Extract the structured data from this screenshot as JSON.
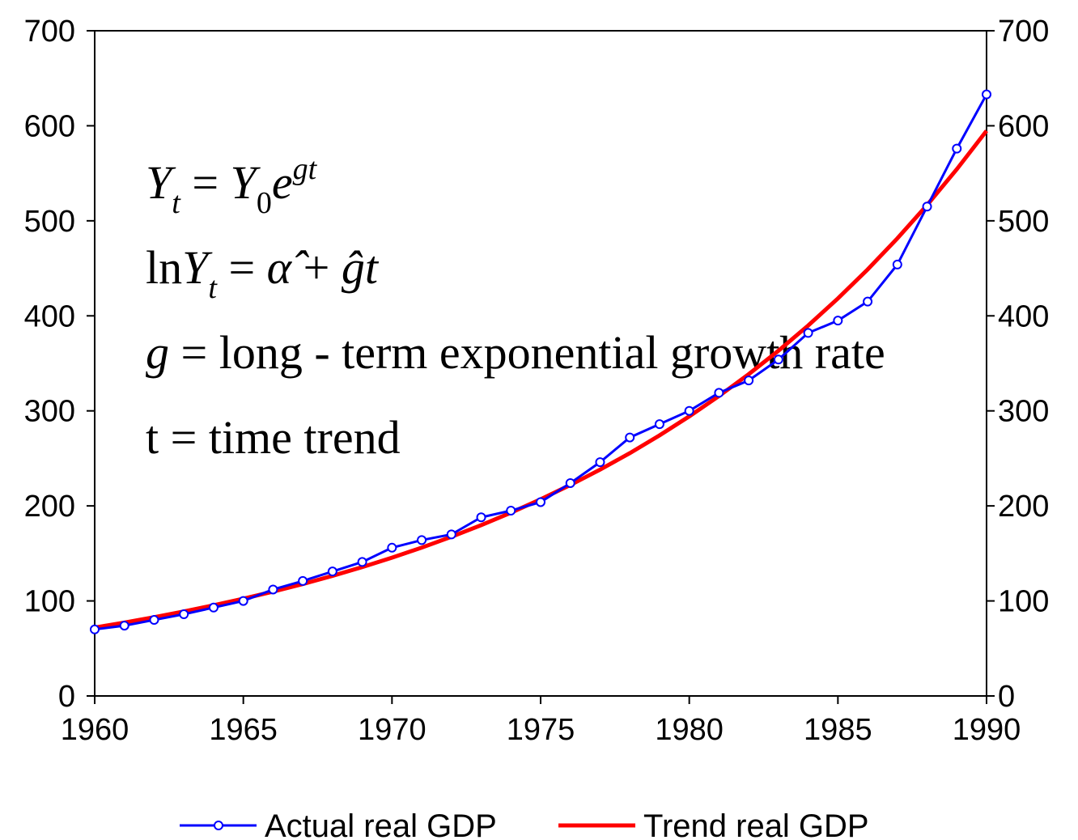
{
  "chart_data": {
    "type": "line",
    "x": [
      1960,
      1961,
      1962,
      1963,
      1964,
      1965,
      1966,
      1967,
      1968,
      1969,
      1970,
      1971,
      1972,
      1973,
      1974,
      1975,
      1976,
      1977,
      1978,
      1979,
      1980,
      1981,
      1982,
      1983,
      1984,
      1985,
      1986,
      1987,
      1988,
      1989,
      1990
    ],
    "series": [
      {
        "name": "Actual real GDP",
        "color": "#0000ff",
        "markers": true,
        "values": [
          70,
          74,
          80,
          86,
          93,
          100,
          112,
          121,
          131,
          141,
          156,
          164,
          170,
          188,
          195,
          204,
          224,
          246,
          272,
          286,
          300,
          319,
          332,
          354,
          382,
          395,
          415,
          454,
          515,
          576,
          633
        ]
      },
      {
        "name": "Trend real GDP",
        "color": "#ff0000",
        "markers": false,
        "values": [
          72,
          77.2,
          82.9,
          88.9,
          95.4,
          102.4,
          109.8,
          117.8,
          126.4,
          135.6,
          145.5,
          156.1,
          167.5,
          179.7,
          192.8,
          206.9,
          222.0,
          238.2,
          255.5,
          274.2,
          294.2,
          315.6,
          338.6,
          363.3,
          389.8,
          418.3,
          448.8,
          481.5,
          516.6,
          554.3,
          594.7
        ]
      }
    ],
    "xlim": [
      1960,
      1990
    ],
    "xticks": [
      1960,
      1965,
      1970,
      1975,
      1980,
      1985,
      1990
    ],
    "ylim": [
      0,
      700
    ],
    "yticks": [
      0,
      100,
      200,
      300,
      400,
      500,
      600,
      700
    ],
    "y2lim": [
      0,
      700
    ],
    "y2ticks": [
      0,
      100,
      200,
      300,
      400,
      500,
      600,
      700
    ],
    "grid": false,
    "legend": "bottom",
    "annotations": [
      [
        {
          "text": "Y",
          "italic": true
        },
        {
          "text": "t",
          "italic": true,
          "shift": "sub"
        },
        {
          "text": " = "
        },
        {
          "text": "Y",
          "italic": true
        },
        {
          "text": "0",
          "shift": "sub"
        },
        {
          "text": "e",
          "italic": true
        },
        {
          "text": "gt",
          "italic": true,
          "shift": "sup"
        }
      ],
      [
        {
          "text": "ln"
        },
        {
          "text": "Y",
          "italic": true
        },
        {
          "text": "t",
          "italic": true,
          "shift": "sub"
        },
        {
          "text": " = "
        },
        {
          "text": "α̂",
          "italic": true
        },
        {
          "text": " + "
        },
        {
          "text": "ĝt",
          "italic": true
        }
      ],
      [
        {
          "text": "g",
          "italic": true
        },
        {
          "text": " = long - term exponential growth rate"
        }
      ],
      [
        {
          "text": "t = time trend"
        }
      ]
    ]
  }
}
